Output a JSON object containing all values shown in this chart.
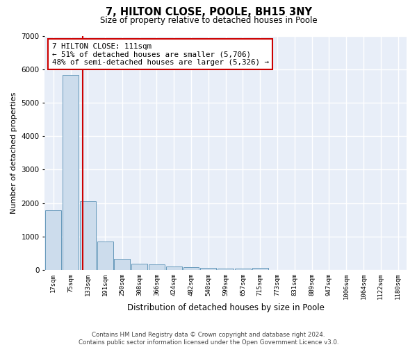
{
  "title1": "7, HILTON CLOSE, POOLE, BH15 3NY",
  "title2": "Size of property relative to detached houses in Poole",
  "xlabel": "Distribution of detached houses by size in Poole",
  "ylabel": "Number of detached properties",
  "bar_labels": [
    "17sqm",
    "75sqm",
    "133sqm",
    "191sqm",
    "250sqm",
    "308sqm",
    "366sqm",
    "424sqm",
    "482sqm",
    "540sqm",
    "599sqm",
    "657sqm",
    "715sqm",
    "773sqm",
    "831sqm",
    "889sqm",
    "947sqm",
    "1006sqm",
    "1064sqm",
    "1122sqm",
    "1180sqm"
  ],
  "bar_values": [
    1780,
    5820,
    2060,
    840,
    340,
    195,
    155,
    100,
    75,
    55,
    50,
    45,
    60,
    0,
    0,
    0,
    0,
    0,
    0,
    0,
    0
  ],
  "bar_color": "#ccdcec",
  "bar_edge_color": "#6699bb",
  "background_color": "#e8eef8",
  "grid_color": "#ffffff",
  "annotation_text": "7 HILTON CLOSE: 111sqm\n← 51% of detached houses are smaller (5,706)\n48% of semi-detached houses are larger (5,326) →",
  "red_line_x": 1.72,
  "annotation_box_color": "#ffffff",
  "annotation_box_edge": "#cc0000",
  "red_line_color": "#cc0000",
  "ylim": [
    0,
    7000
  ],
  "yticks": [
    0,
    1000,
    2000,
    3000,
    4000,
    5000,
    6000,
    7000
  ],
  "footer": "Contains HM Land Registry data © Crown copyright and database right 2024.\nContains public sector information licensed under the Open Government Licence v3.0.",
  "fig_width": 6.0,
  "fig_height": 5.0,
  "fig_bg": "#ffffff"
}
